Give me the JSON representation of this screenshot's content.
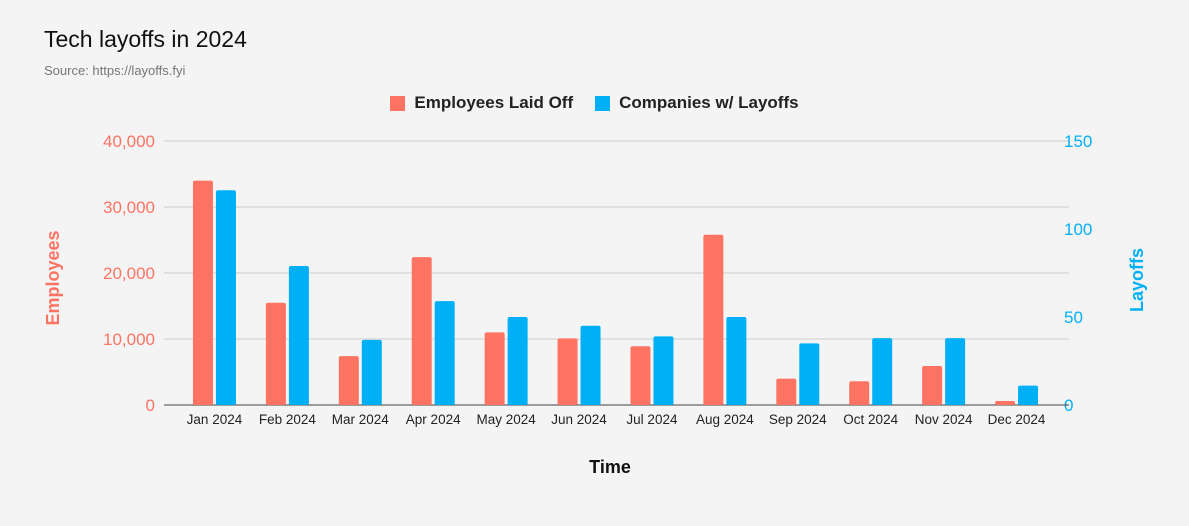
{
  "title": "Tech layoffs in 2024",
  "subtitle": "Source: https://layoffs.fyi",
  "colors": {
    "employees": "#ff7363",
    "companies": "#00b0f7",
    "grid": "#cccccc",
    "axis": "#444444"
  },
  "chart_data": {
    "type": "bar",
    "xlabel": "Time",
    "ylabel_left": "Employees",
    "ylabel_right": "Layoffs",
    "ylim_left": [
      0,
      40000
    ],
    "ylim_right": [
      0,
      150
    ],
    "yticks_left": [
      "0",
      "10,000",
      "20,000",
      "30,000",
      "40,000"
    ],
    "yticks_right": [
      "0",
      "50",
      "100",
      "150"
    ],
    "legend_position": "top-center",
    "grid": true,
    "categories": [
      "Jan 2024",
      "Feb 2024",
      "Mar 2024",
      "Apr 2024",
      "May 2024",
      "Jun 2024",
      "Jul 2024",
      "Aug 2024",
      "Sep 2024",
      "Oct 2024",
      "Nov 2024",
      "Dec 2024"
    ],
    "series": [
      {
        "name": "Employees Laid Off",
        "axis": "left",
        "values": [
          34000,
          15500,
          7400,
          22400,
          11000,
          10100,
          8900,
          25800,
          4000,
          3600,
          5900,
          600
        ]
      },
      {
        "name": "Companies w/ Layoffs",
        "axis": "right",
        "values": [
          122,
          79,
          37,
          59,
          50,
          45,
          39,
          50,
          35,
          38,
          38,
          11
        ]
      }
    ]
  }
}
